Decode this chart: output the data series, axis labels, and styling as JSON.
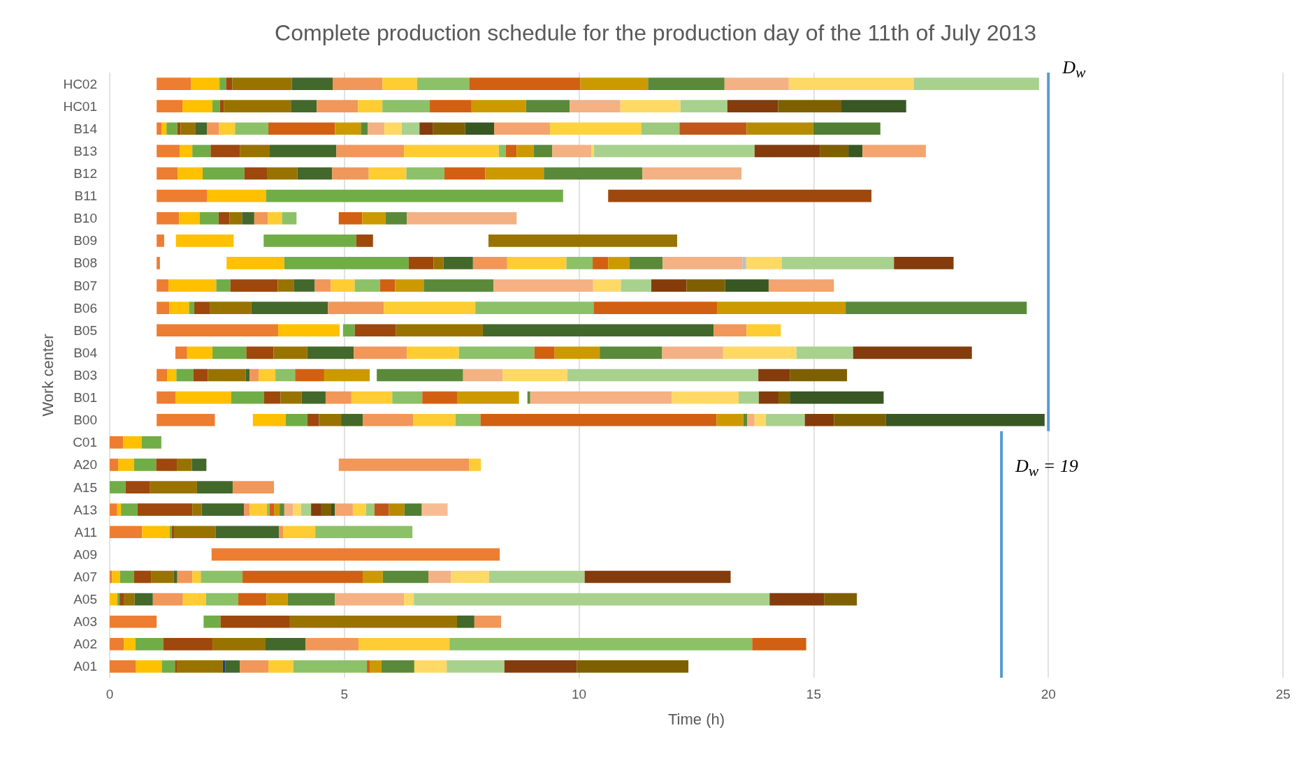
{
  "chart_data": {
    "type": "bar",
    "orientation": "horizontal",
    "title": "Complete production schedule for the production day of the 11th of July 2013",
    "xlabel": "Time (h)",
    "ylabel": "Work center",
    "categories": [
      "HC02",
      "HC01",
      "B14",
      "B13",
      "B12",
      "B11",
      "B10",
      "B09",
      "B08",
      "B07",
      "B06",
      "B05",
      "B04",
      "B03",
      "B01",
      "B00",
      "C01",
      "A20",
      "A15",
      "A13",
      "A11",
      "A09",
      "A07",
      "A05",
      "A03",
      "A02",
      "A01"
    ],
    "xlim": [
      0,
      25
    ],
    "xticks": [
      0,
      5,
      10,
      15,
      20,
      25
    ],
    "grid": "x",
    "ref_lines": [
      {
        "axis": "x",
        "value": 20,
        "label": "D$_{w}$",
        "color": "#5b9bd5"
      },
      {
        "axis": "x",
        "value": 19,
        "label": "D$_{w}$ = 19",
        "color": "#5b9bd5"
      }
    ],
    "series": [
      {
        "color": "#ed7d31",
        "base": [
          1,
          1,
          1,
          1,
          1,
          1,
          1,
          1,
          1,
          1,
          1,
          1,
          1.4,
          1,
          1,
          1,
          0,
          0,
          null,
          0,
          0,
          2.17,
          0,
          null,
          0,
          0,
          0
        ],
        "values": [
          0.73,
          0.55,
          0.11,
          0.49,
          0.45,
          1.08,
          0.48,
          0.16,
          0.07,
          0.25,
          0.27,
          2.59,
          0.25,
          0.23,
          0.4,
          1.24,
          0.29,
          0.18,
          null,
          0.16,
          0.69,
          6.14,
          0.05,
          null,
          1.0,
          0.3,
          0.56
        ]
      },
      {
        "color": "#ffc000",
        "base": [
          1.73,
          1.55,
          1.11,
          1.49,
          1.45,
          2.08,
          1.48,
          1.41,
          2.49,
          1.25,
          1.27,
          3.59,
          1.65,
          1.23,
          1.4,
          3.05,
          0.29,
          0.18,
          null,
          0.16,
          0.69,
          null,
          0.05,
          0,
          null,
          0.3,
          0.56
        ],
        "values": [
          0.61,
          0.64,
          0.1,
          0.27,
          0.53,
          1.25,
          0.44,
          1.23,
          1.23,
          1.02,
          0.42,
          1.31,
          0.54,
          0.19,
          1.19,
          0.7,
          0.39,
          0.34,
          null,
          0.08,
          0.59,
          null,
          0.17,
          0.16,
          null,
          0.25,
          0.55
        ]
      },
      {
        "color": "#70ad47",
        "base": [
          2.34,
          2.19,
          1.21,
          1.76,
          1.98,
          3.33,
          1.92,
          3.28,
          3.72,
          2.27,
          1.69,
          4.97,
          2.19,
          1.42,
          2.59,
          3.75,
          0.68,
          0.52,
          0,
          0.24,
          1.28,
          null,
          0.22,
          0.16,
          2.0,
          0.55,
          1.11
        ],
        "values": [
          0.14,
          0.16,
          0.23,
          0.39,
          0.89,
          6.33,
          0.4,
          1.97,
          2.65,
          0.3,
          0.11,
          0.25,
          0.72,
          0.36,
          0.7,
          0.46,
          0.42,
          0.47,
          0.34,
          0.35,
          0.04,
          null,
          0.3,
          0.05,
          0.36,
          0.59,
          0.28
        ]
      },
      {
        "color": "#9e480e",
        "base": [
          2.48,
          2.35,
          1.44,
          2.15,
          2.87,
          10.62,
          2.32,
          5.25,
          6.37,
          2.57,
          1.8,
          5.22,
          2.91,
          1.78,
          3.29,
          4.21,
          null,
          0.99,
          0.34,
          0.59,
          1.32,
          null,
          0.52,
          0.21,
          2.36,
          1.14,
          1.39
        ],
        "values": [
          0.13,
          0.08,
          0.07,
          0.63,
          0.48,
          5.61,
          0.23,
          0.36,
          0.53,
          1.01,
          0.33,
          0.88,
          0.58,
          0.31,
          0.35,
          0.25,
          null,
          0.44,
          0.52,
          1.17,
          0.05,
          null,
          0.37,
          0.1,
          1.48,
          1.05,
          0.04
        ]
      },
      {
        "color": "#997300",
        "base": [
          2.61,
          2.43,
          1.51,
          2.78,
          3.35,
          null,
          2.55,
          8.07,
          6.9,
          3.58,
          2.13,
          6.1,
          3.49,
          2.09,
          3.64,
          4.46,
          null,
          1.43,
          0.86,
          1.76,
          1.37,
          null,
          0.89,
          0.31,
          3.84,
          2.19,
          1.43
        ],
        "values": [
          1.27,
          1.43,
          0.31,
          0.63,
          0.65,
          null,
          0.27,
          4.02,
          0.21,
          0.34,
          0.89,
          1.85,
          0.72,
          0.81,
          0.45,
          0.47,
          null,
          0.32,
          1.0,
          0.2,
          0.89,
          null,
          0.47,
          0.22,
          3.56,
          1.13,
          0.98
        ]
      },
      {
        "color": "#43682b",
        "base": [
          3.88,
          3.86,
          1.82,
          3.41,
          4.0,
          null,
          2.82,
          null,
          7.11,
          3.92,
          3.02,
          7.95,
          4.21,
          2.9,
          4.09,
          4.93,
          null,
          1.75,
          1.86,
          1.96,
          2.26,
          null,
          1.36,
          0.53,
          7.4,
          3.32,
          2.46
        ],
        "values": [
          0.87,
          0.55,
          0.25,
          1.42,
          0.74,
          null,
          0.26,
          null,
          0.63,
          0.45,
          1.63,
          4.92,
          0.99,
          0.08,
          0.51,
          0.46,
          null,
          0.31,
          0.76,
          0.9,
          1.35,
          null,
          0.08,
          0.39,
          0.37,
          0.85,
          0.31
        ]
      },
      {
        "color": "#f1975a",
        "base": [
          4.75,
          4.41,
          2.07,
          4.83,
          4.74,
          null,
          3.08,
          null,
          7.74,
          4.37,
          4.65,
          12.87,
          5.2,
          2.98,
          4.6,
          5.39,
          null,
          4.88,
          2.62,
          2.86,
          3.61,
          null,
          1.44,
          0.92,
          7.77,
          4.17,
          2.77
        ],
        "values": [
          1.06,
          0.88,
          0.26,
          1.44,
          0.78,
          null,
          0.29,
          null,
          0.73,
          0.34,
          1.19,
          0.7,
          1.13,
          0.2,
          0.55,
          1.08,
          null,
          2.78,
          0.88,
          0.12,
          0.09,
          null,
          0.32,
          0.64,
          0.57,
          1.13,
          0.61
        ]
      },
      {
        "color": "#ffcd33",
        "base": [
          5.81,
          5.29,
          2.33,
          6.27,
          5.52,
          null,
          3.37,
          null,
          8.47,
          4.71,
          5.84,
          13.57,
          6.33,
          3.18,
          5.15,
          6.47,
          null,
          7.66,
          null,
          2.98,
          3.7,
          null,
          1.76,
          1.56,
          null,
          5.3,
          3.38
        ],
        "values": [
          0.74,
          0.52,
          0.34,
          2.02,
          0.8,
          null,
          0.3,
          null,
          1.26,
          0.51,
          1.95,
          0.73,
          1.11,
          0.35,
          0.87,
          0.9,
          null,
          0.25,
          null,
          0.37,
          0.68,
          null,
          0.18,
          0.49,
          null,
          1.94,
          0.53
        ]
      },
      {
        "color": "#8cc168",
        "base": [
          6.55,
          5.81,
          2.67,
          8.29,
          6.32,
          null,
          3.67,
          null,
          9.73,
          5.22,
          7.79,
          null,
          7.44,
          3.53,
          6.02,
          7.37,
          null,
          null,
          null,
          3.35,
          4.38,
          null,
          1.94,
          2.05,
          null,
          7.24,
          3.91
        ],
        "values": [
          1.11,
          1.01,
          0.71,
          0.15,
          0.81,
          null,
          0.31,
          null,
          0.56,
          0.54,
          2.52,
          null,
          1.61,
          0.42,
          0.64,
          0.53,
          null,
          null,
          null,
          0.06,
          2.07,
          null,
          0.89,
          0.69,
          null,
          6.45,
          1.57
        ]
      },
      {
        "color": "#d26012",
        "base": [
          7.66,
          6.82,
          3.38,
          8.44,
          7.13,
          null,
          4.88,
          null,
          10.29,
          5.76,
          10.31,
          null,
          9.05,
          3.95,
          6.66,
          7.9,
          null,
          null,
          null,
          3.41,
          null,
          null,
          2.83,
          2.74,
          null,
          13.69,
          5.48
        ],
        "values": [
          2.37,
          0.89,
          1.42,
          0.23,
          0.87,
          null,
          0.5,
          null,
          0.33,
          0.32,
          2.63,
          null,
          0.43,
          0.62,
          0.74,
          5.03,
          null,
          null,
          null,
          0.1,
          null,
          null,
          2.56,
          0.6,
          null,
          1.15,
          0.06
        ]
      },
      {
        "color": "#cc9a00",
        "base": [
          10.03,
          7.71,
          4.8,
          8.67,
          8.0,
          null,
          5.38,
          null,
          10.62,
          6.08,
          12.94,
          null,
          9.48,
          4.57,
          7.4,
          12.93,
          null,
          null,
          null,
          3.51,
          null,
          null,
          5.39,
          3.34,
          null,
          null,
          5.54
        ],
        "values": [
          1.44,
          1.16,
          0.55,
          0.36,
          1.25,
          null,
          0.5,
          null,
          0.45,
          0.61,
          2.74,
          null,
          0.96,
          0.97,
          1.32,
          0.57,
          null,
          null,
          null,
          0.11,
          null,
          null,
          0.43,
          0.45,
          null,
          null,
          0.25
        ]
      },
      {
        "color": "#5a8a39",
        "base": [
          11.47,
          8.87,
          5.35,
          9.03,
          9.25,
          null,
          5.88,
          null,
          11.07,
          6.69,
          15.68,
          null,
          10.44,
          5.69,
          8.9,
          13.5,
          null,
          null,
          null,
          3.62,
          null,
          null,
          5.82,
          3.79,
          null,
          null,
          5.79
        ],
        "values": [
          1.63,
          0.93,
          0.15,
          0.4,
          2.1,
          null,
          0.45,
          null,
          0.71,
          1.49,
          3.86,
          null,
          1.33,
          1.84,
          0.06,
          0.08,
          null,
          null,
          null,
          0.1,
          null,
          null,
          0.97,
          1.01,
          null,
          null,
          0.7
        ]
      },
      {
        "color": "#f4b183",
        "base": [
          13.1,
          9.8,
          5.5,
          9.43,
          11.35,
          null,
          6.33,
          null,
          11.78,
          8.18,
          null,
          null,
          11.77,
          7.53,
          8.96,
          13.58,
          null,
          null,
          null,
          3.72,
          null,
          null,
          6.79,
          4.8,
          null,
          null,
          null
        ],
        "values": [
          1.37,
          1.08,
          0.35,
          0.83,
          2.11,
          null,
          2.34,
          null,
          1.7,
          2.12,
          null,
          null,
          1.3,
          0.84,
          3.02,
          0.16,
          null,
          null,
          null,
          0.18,
          null,
          null,
          0.48,
          1.47,
          null,
          null,
          null
        ]
      },
      {
        "color": "#ffd966",
        "base": [
          14.47,
          10.88,
          5.85,
          10.26,
          null,
          null,
          null,
          null,
          13.56,
          10.3,
          null,
          null,
          13.07,
          8.37,
          11.98,
          13.74,
          null,
          null,
          null,
          3.9,
          null,
          null,
          7.27,
          6.27,
          null,
          null,
          6.49
        ],
        "values": [
          2.66,
          1.28,
          0.37,
          0.06,
          null,
          null,
          null,
          null,
          0.76,
          0.59,
          null,
          null,
          1.56,
          1.38,
          1.42,
          0.24,
          null,
          null,
          null,
          0.18,
          null,
          null,
          0.81,
          0.21,
          null,
          null,
          0.69
        ]
      },
      {
        "color": "#a9d18e",
        "base": [
          17.13,
          12.16,
          6.22,
          10.32,
          null,
          null,
          null,
          null,
          14.32,
          10.89,
          null,
          null,
          14.63,
          9.75,
          13.4,
          13.98,
          null,
          null,
          null,
          4.08,
          null,
          null,
          8.08,
          6.48,
          null,
          null,
          7.18
        ],
        "values": [
          2.67,
          1.0,
          0.38,
          3.42,
          null,
          null,
          null,
          null,
          2.39,
          0.65,
          null,
          null,
          1.21,
          4.07,
          0.43,
          0.83,
          null,
          null,
          null,
          0.21,
          null,
          null,
          2.04,
          7.58,
          null,
          null,
          1.23
        ]
      },
      {
        "color": "#843c0c",
        "base": [
          null,
          13.16,
          6.6,
          13.74,
          null,
          null,
          null,
          null,
          16.71,
          11.54,
          null,
          null,
          15.84,
          13.82,
          13.83,
          14.81,
          null,
          null,
          null,
          4.29,
          null,
          null,
          10.12,
          14.06,
          null,
          null,
          8.41
        ],
        "values": [
          null,
          1.08,
          0.29,
          1.39,
          null,
          null,
          null,
          null,
          1.27,
          0.75,
          null,
          null,
          2.53,
          0.67,
          0.42,
          0.62,
          null,
          null,
          null,
          0.22,
          null,
          null,
          3.11,
          1.16,
          null,
          null,
          1.54
        ]
      },
      {
        "color": "#7f6000",
        "base": [
          null,
          14.24,
          6.89,
          15.13,
          null,
          null,
          null,
          null,
          null,
          12.29,
          null,
          null,
          null,
          14.49,
          14.25,
          15.43,
          null,
          null,
          null,
          4.51,
          null,
          null,
          null,
          15.22,
          null,
          null,
          9.95
        ],
        "values": [
          null,
          1.35,
          0.68,
          0.61,
          null,
          null,
          null,
          null,
          null,
          0.82,
          null,
          null,
          null,
          1.22,
          0.24,
          1.11,
          null,
          null,
          null,
          0.21,
          null,
          null,
          null,
          0.7,
          null,
          null,
          2.38
        ]
      },
      {
        "color": "#385723",
        "base": [
          null,
          15.59,
          7.57,
          15.74,
          null,
          null,
          null,
          null,
          null,
          13.11,
          null,
          null,
          null,
          null,
          14.49,
          16.54,
          null,
          null,
          null,
          4.72,
          null,
          null,
          null,
          null,
          null,
          null,
          null
        ],
        "values": [
          null,
          1.38,
          0.62,
          0.3,
          null,
          null,
          null,
          null,
          null,
          0.93,
          null,
          null,
          null,
          null,
          2.0,
          3.38,
          null,
          null,
          null,
          0.08,
          null,
          null,
          null,
          null,
          null,
          null,
          null
        ]
      },
      {
        "color": "#f4a46e",
        "base": [
          null,
          null,
          8.19,
          16.04,
          null,
          null,
          null,
          null,
          null,
          14.04,
          null,
          null,
          null,
          null,
          null,
          null,
          null,
          null,
          null,
          4.8,
          null,
          null,
          null,
          null,
          null,
          null,
          null
        ],
        "values": [
          null,
          null,
          1.19,
          1.35,
          null,
          null,
          null,
          null,
          null,
          1.39,
          null,
          null,
          null,
          null,
          null,
          null,
          null,
          null,
          null,
          0.38,
          null,
          null,
          null,
          null,
          null,
          null,
          null
        ]
      },
      {
        "color": "#ffd23f",
        "base": [
          null,
          null,
          9.38,
          null,
          null,
          null,
          null,
          null,
          null,
          null,
          null,
          null,
          null,
          null,
          null,
          null,
          null,
          null,
          null,
          5.18,
          null,
          null,
          null,
          null,
          null,
          null,
          null
        ],
        "values": [
          null,
          null,
          1.95,
          null,
          null,
          null,
          null,
          null,
          null,
          null,
          null,
          null,
          null,
          null,
          null,
          null,
          null,
          null,
          null,
          0.28,
          null,
          null,
          null,
          null,
          null,
          null,
          null
        ]
      },
      {
        "color": "#9dc97d",
        "base": [
          null,
          null,
          11.33,
          null,
          null,
          null,
          null,
          null,
          null,
          null,
          null,
          null,
          null,
          null,
          null,
          null,
          null,
          null,
          null,
          5.46,
          null,
          null,
          null,
          null,
          null,
          null,
          null
        ],
        "values": [
          null,
          null,
          0.81,
          null,
          null,
          null,
          null,
          null,
          null,
          null,
          null,
          null,
          null,
          null,
          null,
          null,
          null,
          null,
          null,
          0.18,
          null,
          null,
          null,
          null,
          null,
          null,
          null
        ]
      },
      {
        "color": "#c0571a",
        "base": [
          null,
          null,
          12.14,
          null,
          null,
          null,
          null,
          null,
          null,
          null,
          null,
          null,
          null,
          null,
          null,
          null,
          null,
          null,
          null,
          5.64,
          null,
          null,
          null,
          null,
          null,
          null,
          null
        ],
        "values": [
          null,
          null,
          1.43,
          null,
          null,
          null,
          null,
          null,
          null,
          null,
          null,
          null,
          null,
          null,
          null,
          null,
          null,
          null,
          null,
          0.31,
          null,
          null,
          null,
          null,
          null,
          null,
          null
        ]
      },
      {
        "color": "#b68b00",
        "base": [
          null,
          null,
          13.57,
          null,
          null,
          null,
          null,
          null,
          null,
          null,
          null,
          null,
          null,
          null,
          null,
          null,
          null,
          null,
          null,
          5.95,
          null,
          null,
          null,
          null,
          null,
          null,
          null
        ],
        "values": [
          null,
          null,
          1.42,
          null,
          null,
          null,
          null,
          null,
          null,
          null,
          null,
          null,
          null,
          null,
          null,
          null,
          null,
          null,
          null,
          0.33,
          null,
          null,
          null,
          null,
          null,
          null,
          null
        ]
      },
      {
        "color": "#507e32",
        "base": [
          null,
          null,
          14.99,
          null,
          null,
          null,
          null,
          null,
          null,
          null,
          null,
          null,
          null,
          null,
          null,
          null,
          null,
          null,
          null,
          6.28,
          null,
          null,
          null,
          null,
          null,
          null,
          null
        ],
        "values": [
          null,
          null,
          1.43,
          null,
          null,
          null,
          null,
          null,
          null,
          null,
          null,
          null,
          null,
          null,
          null,
          null,
          null,
          null,
          null,
          0.37,
          null,
          null,
          null,
          null,
          null,
          null,
          null
        ]
      },
      {
        "color": "#f8bc95",
        "base": [
          null,
          null,
          null,
          null,
          null,
          null,
          null,
          null,
          null,
          null,
          null,
          null,
          null,
          null,
          null,
          null,
          null,
          null,
          null,
          6.65,
          null,
          null,
          null,
          null,
          null,
          null,
          null
        ],
        "values": [
          null,
          null,
          null,
          null,
          null,
          null,
          null,
          null,
          null,
          null,
          null,
          null,
          null,
          null,
          null,
          null,
          null,
          null,
          null,
          0.55,
          null,
          null,
          null,
          null,
          null,
          null,
          null
        ]
      },
      {
        "color": "#bfbfbf",
        "base": [
          null,
          null,
          null,
          null,
          null,
          null,
          null,
          null,
          13.48,
          null,
          null,
          null,
          null,
          null,
          null,
          null,
          null,
          null,
          null,
          null,
          null,
          null,
          null,
          null,
          null,
          null,
          null
        ],
        "values": [
          null,
          null,
          null,
          null,
          null,
          null,
          null,
          null,
          0.08,
          null,
          null,
          null,
          null,
          null,
          null,
          null,
          null,
          null,
          null,
          null,
          null,
          null,
          null,
          null,
          null,
          null,
          null
        ]
      },
      {
        "color": "#264478",
        "base": [
          null,
          null,
          null,
          null,
          null,
          null,
          null,
          null,
          null,
          null,
          null,
          null,
          null,
          null,
          null,
          null,
          null,
          null,
          null,
          null,
          null,
          null,
          null,
          null,
          null,
          null,
          2.41
        ],
        "values": [
          null,
          null,
          null,
          null,
          null,
          null,
          null,
          null,
          null,
          null,
          null,
          null,
          null,
          null,
          null,
          null,
          null,
          null,
          null,
          null,
          null,
          null,
          null,
          null,
          null,
          null,
          0.05
        ]
      }
    ]
  }
}
